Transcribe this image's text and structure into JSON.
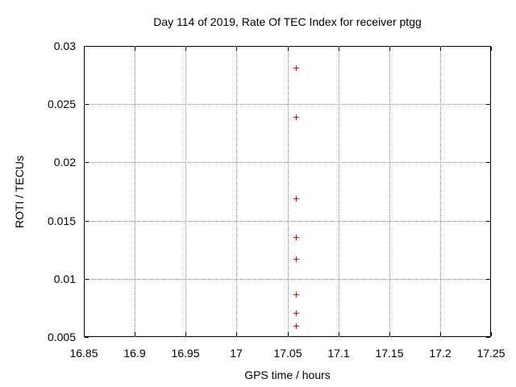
{
  "chart_data": {
    "type": "scatter",
    "title": "Day 114 of 2019, Rate Of TEC Index for receiver ptgg",
    "xlabel": "GPS time / hours",
    "ylabel": "ROTI / TECUs",
    "xlim": [
      16.85,
      17.25
    ],
    "ylim": [
      0.005,
      0.03
    ],
    "x_ticks": [
      {
        "value": 16.85,
        "label": "16.85"
      },
      {
        "value": 16.9,
        "label": "16.9"
      },
      {
        "value": 16.95,
        "label": "16.95"
      },
      {
        "value": 17.0,
        "label": "17"
      },
      {
        "value": 17.05,
        "label": "17.05"
      },
      {
        "value": 17.1,
        "label": "17.1"
      },
      {
        "value": 17.15,
        "label": "17.15"
      },
      {
        "value": 17.2,
        "label": "17.2"
      },
      {
        "value": 17.25,
        "label": "17.25"
      }
    ],
    "y_ticks": [
      {
        "value": 0.005,
        "label": "0.005"
      },
      {
        "value": 0.01,
        "label": "0.01"
      },
      {
        "value": 0.015,
        "label": "0.015"
      },
      {
        "value": 0.02,
        "label": "0.02"
      },
      {
        "value": 0.025,
        "label": "0.025"
      },
      {
        "value": 0.03,
        "label": "0.03"
      }
    ],
    "grid": true,
    "legend_position": "none",
    "series": [
      {
        "name": "ROTI",
        "marker": "plus",
        "color": "#ff0000",
        "points": [
          {
            "x": 17.058,
            "y": 0.0281
          },
          {
            "x": 17.058,
            "y": 0.0239
          },
          {
            "x": 17.058,
            "y": 0.0169
          },
          {
            "x": 17.058,
            "y": 0.0136
          },
          {
            "x": 17.058,
            "y": 0.0117
          },
          {
            "x": 17.058,
            "y": 0.0087
          },
          {
            "x": 17.058,
            "y": 0.0071
          },
          {
            "x": 17.058,
            "y": 0.006
          }
        ]
      }
    ],
    "colors": {
      "background": "#ffffff",
      "axis": "#000000",
      "grid": "#8c8c8c",
      "text": "#000000"
    }
  }
}
